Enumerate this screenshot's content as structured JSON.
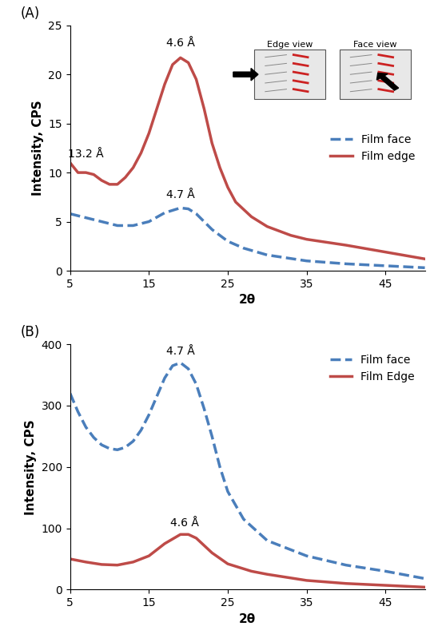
{
  "chart_data": [
    {
      "type": "line",
      "panel_label": "(A)",
      "x_label": "2θ",
      "y_label": "Intensity, CPS",
      "xlim": [
        5,
        50
      ],
      "xticks": [
        5,
        15,
        25,
        35,
        45
      ],
      "ylim": [
        0,
        25
      ],
      "yticks": [
        0,
        5,
        10,
        15,
        20,
        25
      ],
      "legend": "center right",
      "inset_labels": [
        "Edge view",
        "Face view"
      ],
      "annotations": [
        {
          "text": "4.6 Å",
          "x": 19,
          "y": 22.6
        },
        {
          "text": "13.2 Å",
          "x": 7,
          "y": 11.3
        },
        {
          "text": "4.7 Å",
          "x": 19,
          "y": 7.2
        }
      ],
      "series": [
        {
          "name": "Film face",
          "color": "#4a7ebb",
          "line_style": "dashed",
          "x": [
            5,
            7,
            9,
            11,
            13,
            15,
            17,
            19,
            20,
            21,
            22,
            23,
            25,
            27,
            30,
            35,
            40,
            45,
            50
          ],
          "values": [
            5.8,
            5.4,
            5.0,
            4.6,
            4.6,
            5.0,
            5.9,
            6.4,
            6.3,
            5.8,
            5.0,
            4.2,
            3.0,
            2.3,
            1.6,
            1.0,
            0.7,
            0.5,
            0.3
          ]
        },
        {
          "name": "Film edge",
          "color": "#be4b48",
          "line_style": "solid",
          "x": [
            5,
            6,
            7,
            8,
            9,
            10,
            11,
            12,
            13,
            14,
            15,
            16,
            17,
            18,
            19,
            20,
            21,
            22,
            23,
            24,
            25,
            26,
            28,
            30,
            33,
            35,
            40,
            45,
            50
          ],
          "values": [
            11,
            10,
            10,
            9.8,
            9.2,
            8.8,
            8.8,
            9.5,
            10.5,
            12,
            14,
            16.5,
            19,
            21,
            21.7,
            21.2,
            19.5,
            16.5,
            13,
            10.5,
            8.5,
            7,
            5.5,
            4.5,
            3.6,
            3.2,
            2.6,
            1.9,
            1.2
          ]
        }
      ]
    },
    {
      "type": "line",
      "panel_label": "(B)",
      "x_label": "2θ",
      "y_label": "Intensity, CPS",
      "xlim": [
        5,
        50
      ],
      "xticks": [
        5,
        15,
        25,
        35,
        45
      ],
      "ylim": [
        0,
        400
      ],
      "yticks": [
        0,
        100,
        200,
        300,
        400
      ],
      "legend": "upper right",
      "annotations": [
        {
          "text": "4.7 Å",
          "x": 19,
          "y": 380
        },
        {
          "text": "4.6 Å",
          "x": 19.5,
          "y": 100
        }
      ],
      "series": [
        {
          "name": "Film face",
          "color": "#4a7ebb",
          "line_style": "dashed",
          "x": [
            5,
            6,
            7,
            8,
            9,
            10,
            11,
            12,
            13,
            14,
            15,
            16,
            17,
            18,
            19,
            20,
            21,
            22,
            23,
            24,
            25,
            27,
            30,
            35,
            40,
            45,
            50
          ],
          "values": [
            320,
            290,
            265,
            248,
            236,
            230,
            228,
            232,
            242,
            260,
            285,
            315,
            345,
            365,
            370,
            360,
            335,
            295,
            250,
            200,
            160,
            115,
            80,
            55,
            40,
            30,
            18
          ]
        },
        {
          "name": "Film Edge",
          "color": "#be4b48",
          "line_style": "solid",
          "x": [
            5,
            7,
            9,
            11,
            13,
            15,
            17,
            19,
            20,
            21,
            22,
            23,
            25,
            28,
            30,
            35,
            40,
            45,
            50
          ],
          "values": [
            50,
            45,
            41,
            40,
            45,
            55,
            75,
            90,
            90,
            84,
            72,
            60,
            42,
            30,
            25,
            15,
            10,
            7,
            4
          ]
        }
      ]
    }
  ]
}
